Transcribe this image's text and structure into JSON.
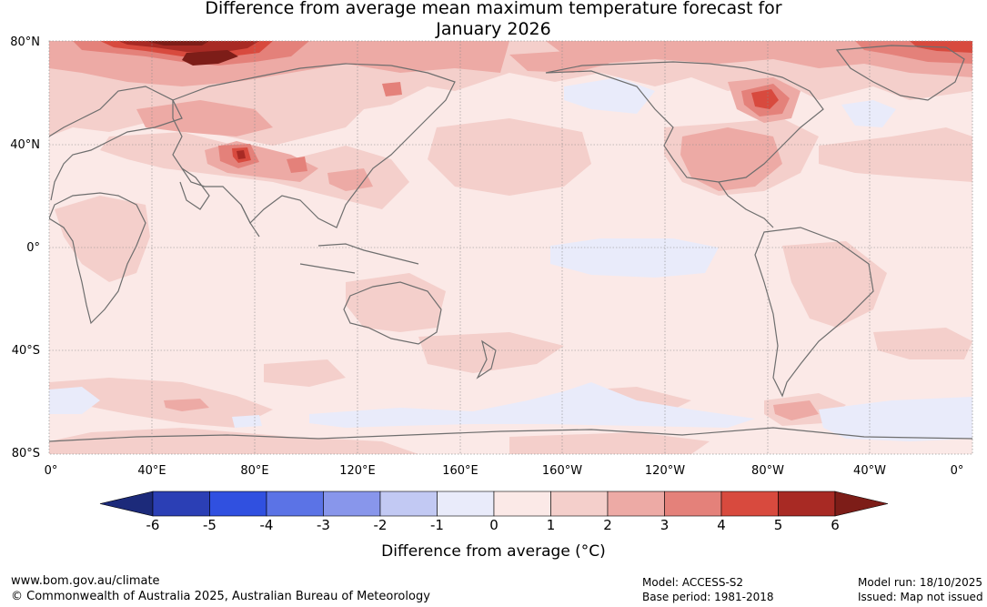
{
  "title_line1": "Difference from average mean maximum temperature forecast for",
  "title_line2": "January 2026",
  "lat_labels": [
    "80°N",
    "40°N",
    "0°",
    "40°S",
    "80°S"
  ],
  "lon_labels": [
    "0°",
    "40°E",
    "80°E",
    "120°E",
    "160°E",
    "160°W",
    "120°W",
    "80°W",
    "40°W",
    "0°"
  ],
  "colorbar": {
    "ticks": [
      "-6",
      "-5",
      "-4",
      "-3",
      "-2",
      "-1",
      "0",
      "1",
      "2",
      "3",
      "4",
      "5",
      "6"
    ],
    "colors": [
      "#1c2a7a",
      "#2b3fb5",
      "#3050e0",
      "#5b73e6",
      "#8896eb",
      "#c2c9f3",
      "#e9ebfa",
      "#fbe9e7",
      "#f4cfcb",
      "#edaaa5",
      "#e4817a",
      "#d84a3e",
      "#a82a24",
      "#7d1d18"
    ],
    "label": "Difference from average (°C)"
  },
  "footer": {
    "website": "www.bom.gov.au/climate",
    "copyright": "© Commonwealth of Australia 2025, Australian Bureau of Meteorology",
    "model": "Model: ACCESS-S2",
    "base_period": "Base period: 1981-2018",
    "model_run": "Model run: 18/10/2025",
    "issued": "Issued: Map not issued"
  }
}
